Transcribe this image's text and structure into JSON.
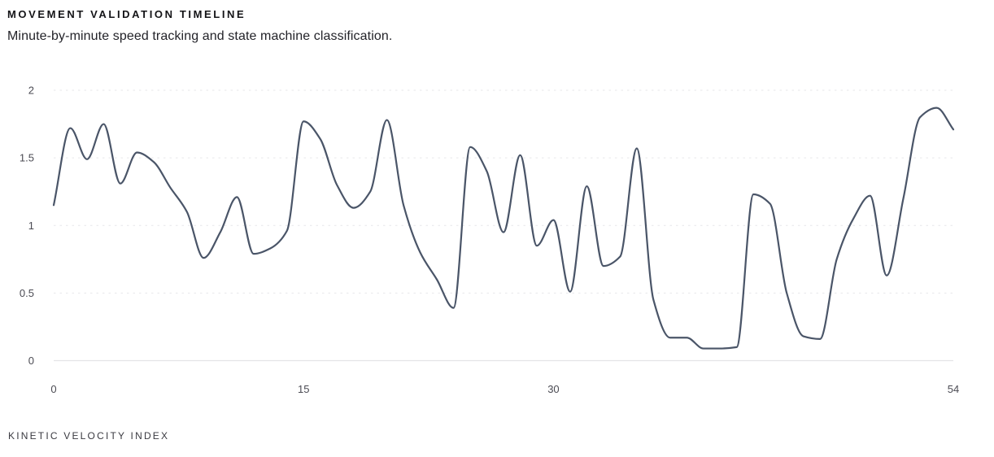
{
  "header": {
    "title": "MOVEMENT VALIDATION TIMELINE",
    "subtitle": "Minute-by-minute speed tracking and state machine classification."
  },
  "footer": {
    "label": "KINETIC VELOCITY INDEX"
  },
  "chart_data": {
    "type": "line",
    "title": "MOVEMENT VALIDATION TIMELINE",
    "x": [
      0,
      1,
      2,
      3,
      4,
      5,
      6,
      7,
      8,
      9,
      10,
      11,
      12,
      13,
      14,
      15,
      16,
      17,
      18,
      19,
      20,
      21,
      22,
      23,
      24,
      25,
      26,
      27,
      28,
      29,
      30,
      31,
      32,
      33,
      34,
      35,
      36,
      37,
      38,
      39,
      40,
      41,
      42,
      43,
      44,
      45,
      46,
      47,
      48,
      49,
      50,
      51,
      52,
      53,
      54
    ],
    "values": [
      1.15,
      1.72,
      1.49,
      1.75,
      1.31,
      1.54,
      1.47,
      1.28,
      1.1,
      0.76,
      0.95,
      1.21,
      0.79,
      0.83,
      0.96,
      1.77,
      1.64,
      1.3,
      1.13,
      1.25,
      1.78,
      1.15,
      0.8,
      0.6,
      0.39,
      1.58,
      1.4,
      0.95,
      1.52,
      0.85,
      1.04,
      0.51,
      1.29,
      0.7,
      0.77,
      1.57,
      0.45,
      0.17,
      0.17,
      0.09,
      0.09,
      0.1,
      1.23,
      1.16,
      0.5,
      0.18,
      0.16,
      0.75,
      1.05,
      1.22,
      0.63,
      1.2,
      1.8,
      1.87,
      1.71
    ],
    "x_ticks": [
      0,
      15,
      30,
      54
    ],
    "y_ticks": [
      "0",
      "0.5",
      "1",
      "1.5",
      "2"
    ],
    "xlim": [
      0,
      54
    ],
    "ylim": [
      0,
      2
    ],
    "grid": "horizontal-dashed",
    "legend": "none",
    "line_color": "#4a5568",
    "grid_color": "#e7e7ea",
    "axis_color": "#e4e4e7",
    "tick_color": "#4b4b53"
  }
}
